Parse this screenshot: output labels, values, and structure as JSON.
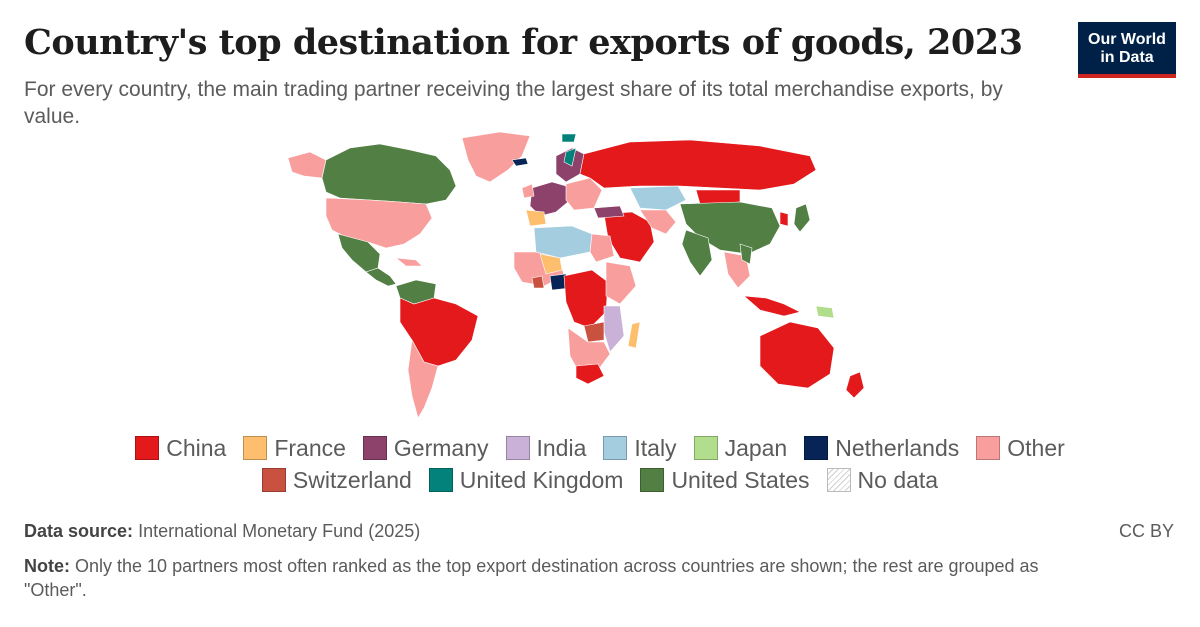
{
  "header": {
    "title": "Country's top destination for exports of goods, 2023",
    "subtitle": "For every country, the main trading partner receiving the largest share of its total merchandise exports, by value.",
    "logo_line1": "Our World",
    "logo_line2": "in Data"
  },
  "colors": {
    "China": "#e3191c",
    "France": "#fdbe6e",
    "Germany": "#8c426b",
    "India": "#c9b1d8",
    "Italy": "#a4cde0",
    "Japan": "#b1de8c",
    "Netherlands": "#062455",
    "Other": "#f89f9e",
    "Switzerland": "#c95140",
    "United Kingdom": "#02827a",
    "United States": "#527f44"
  },
  "legend": {
    "row1": [
      {
        "label": "China",
        "color": "#e3191c"
      },
      {
        "label": "France",
        "color": "#fdbe6e"
      },
      {
        "label": "Germany",
        "color": "#8c426b"
      },
      {
        "label": "India",
        "color": "#c9b1d8"
      },
      {
        "label": "Italy",
        "color": "#a4cde0"
      },
      {
        "label": "Japan",
        "color": "#b1de8c"
      },
      {
        "label": "Netherlands",
        "color": "#062455"
      },
      {
        "label": "Other",
        "color": "#f89f9e"
      }
    ],
    "row2": [
      {
        "label": "Switzerland",
        "color": "#c95140"
      },
      {
        "label": "United Kingdom",
        "color": "#02827a"
      },
      {
        "label": "United States",
        "color": "#527f44"
      },
      {
        "label": "No data",
        "color": "nodata"
      }
    ]
  },
  "footer": {
    "source_label": "Data source:",
    "source_text": "International Monetary Fund (2025)",
    "license": "CC BY",
    "note_label": "Note:",
    "note_text": "Only the 10 partners most often ranked as the top export destination across countries are shown; the rest are grouped as \"Other\"."
  }
}
